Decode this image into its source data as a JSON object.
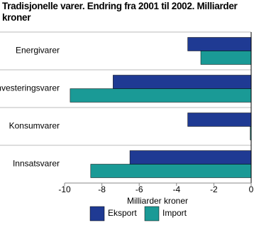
{
  "chart_data": {
    "type": "bar",
    "orientation": "horizontal",
    "title": "Tradisjonelle varer. Endring fra 2001 til 2002. Milliarder kroner",
    "x_label": "Milliarder kroner",
    "categories": [
      "Energivarer",
      "Investeringsvarer",
      "Konsumvarer",
      "Innsatsvarer"
    ],
    "series": [
      {
        "name": "Eksport",
        "color": "#1f3a93",
        "values": [
          -3.4,
          -7.4,
          -3.4,
          -6.5
        ]
      },
      {
        "name": "Import",
        "color": "#1a9a96",
        "values": [
          -2.7,
          -9.7,
          -0.05,
          -8.6
        ]
      }
    ],
    "xlim": [
      -10,
      0
    ],
    "xticks": [
      -10,
      -8,
      -6,
      -4,
      -2,
      0
    ]
  }
}
